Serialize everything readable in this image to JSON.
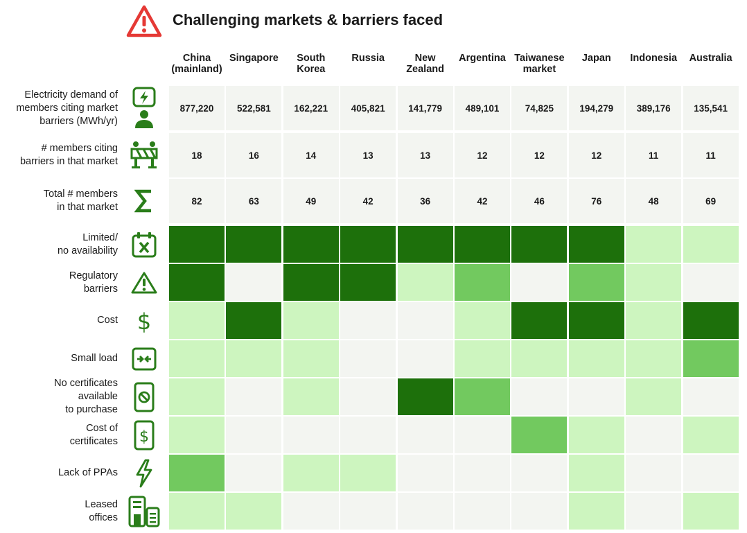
{
  "title": "Challenging markets & barriers faced",
  "chart_data": {
    "type": "heatmap",
    "title": "Challenging markets & barriers faced",
    "columns": [
      "China\n(mainland)",
      "Singapore",
      "South\nKorea",
      "Russia",
      "New\nZealand",
      "Argentina",
      "Taiwanese\nmarket",
      "Japan",
      "Indonesia",
      "Australia"
    ],
    "stat_rows": [
      {
        "label": "Electricity demand of\nmembers citing market\nbarriers (MWh/yr)",
        "icon": "person-lightning-icon",
        "values": [
          "877,220",
          "522,581",
          "162,221",
          "405,821",
          "141,779",
          "489,101",
          "74,825",
          "194,279",
          "389,176",
          "135,541"
        ]
      },
      {
        "label": "# members citing\nbarriers in that market",
        "icon": "barrier-icon",
        "values": [
          "18",
          "16",
          "14",
          "13",
          "13",
          "12",
          "12",
          "12",
          "11",
          "11"
        ]
      },
      {
        "label": "Total # members\nin that market",
        "icon": "sigma-icon",
        "values": [
          "82",
          "63",
          "49",
          "42",
          "36",
          "42",
          "46",
          "76",
          "48",
          "69"
        ]
      }
    ],
    "barrier_rows": [
      {
        "label": "Limited/\nno availability",
        "icon": "calendar-x-icon",
        "levels": [
          4,
          4,
          4,
          4,
          4,
          4,
          4,
          4,
          2,
          2
        ]
      },
      {
        "label": "Regulatory\nbarriers",
        "icon": "warning-icon",
        "levels": [
          4,
          1,
          4,
          4,
          2,
          3,
          1,
          3,
          2,
          1
        ]
      },
      {
        "label": "Cost",
        "icon": "dollar-icon",
        "levels": [
          2,
          4,
          2,
          1,
          1,
          2,
          4,
          4,
          2,
          4
        ]
      },
      {
        "label": "Small load",
        "icon": "compress-icon",
        "levels": [
          2,
          2,
          2,
          1,
          1,
          2,
          2,
          2,
          2,
          3
        ]
      },
      {
        "label": "No certificates\navailable\nto purchase",
        "icon": "no-certificate-icon",
        "levels": [
          2,
          1,
          2,
          1,
          4,
          3,
          1,
          1,
          2,
          1
        ]
      },
      {
        "label": "Cost of\ncertificates",
        "icon": "certificate-dollar-icon",
        "levels": [
          2,
          1,
          1,
          1,
          1,
          1,
          3,
          2,
          1,
          2
        ]
      },
      {
        "label": "Lack of PPAs",
        "icon": "lightning-icon",
        "levels": [
          3,
          1,
          2,
          2,
          1,
          1,
          1,
          2,
          1,
          1
        ]
      },
      {
        "label": "Leased\noffices",
        "icon": "buildings-icon",
        "levels": [
          2,
          2,
          1,
          1,
          1,
          1,
          1,
          2,
          1,
          2
        ]
      }
    ],
    "level_colors": {
      "1": "#f3f5f1",
      "2": "#cdf5bf",
      "3": "#72c95f",
      "4": "#1d700b"
    },
    "accent_color": "#2a7d1a",
    "alert_color": "#e53935"
  }
}
